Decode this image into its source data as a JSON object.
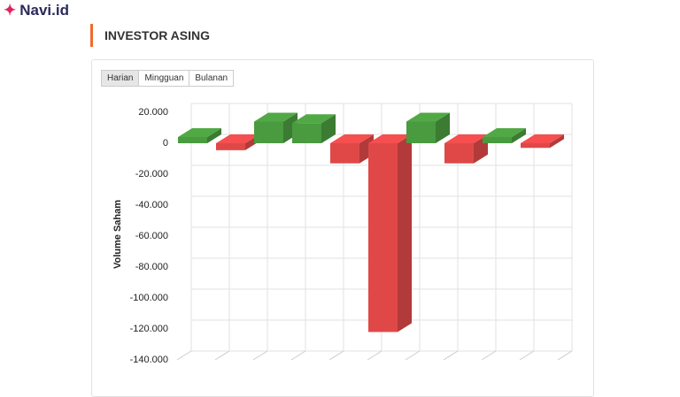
{
  "logo": "Navi.id",
  "section_title": "INVESTOR ASING",
  "tabs": [
    "Harian",
    "Mingguan",
    "Bulanan"
  ],
  "chart_data": {
    "type": "bar3d",
    "y_label": "Volume Saham",
    "categories": [
      null,
      null,
      null,
      null,
      null,
      null,
      null,
      null,
      null,
      null
    ],
    "values": [
      4000,
      -4500,
      14000,
      13000,
      -13000,
      -122000,
      14000,
      -13000,
      4000,
      -3000
    ],
    "positive_color": "#4a9a3f",
    "negative_color": "#e04848",
    "ylim": [
      -140000,
      20000
    ],
    "yticks": [
      {
        "value": 20000,
        "label": "20.000"
      },
      0,
      {
        "value": -20000,
        "label": "-20.000"
      },
      {
        "value": -40000,
        "label": "-40.000"
      },
      {
        "value": -60000,
        "label": "-60.000"
      },
      {
        "value": -80000,
        "label": "-80.000"
      },
      {
        "value": -100000,
        "label": "-100.000"
      },
      {
        "value": -120000,
        "label": "-120.000"
      },
      {
        "value": -140000,
        "label": "-140.000"
      }
    ],
    "grid": true
  }
}
